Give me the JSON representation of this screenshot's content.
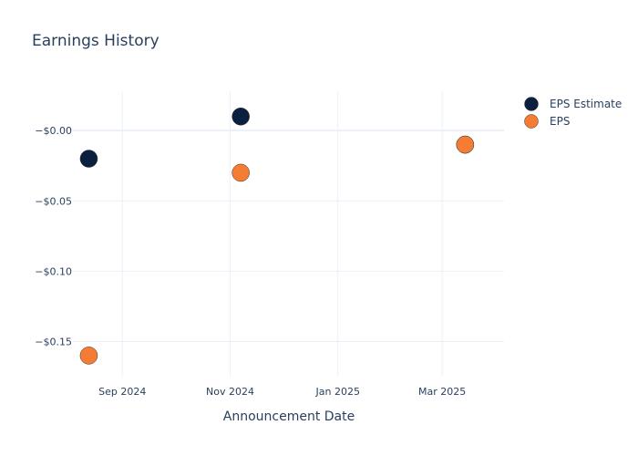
{
  "chart_data": {
    "type": "scatter",
    "title": "Earnings History",
    "xlabel": "Announcement Date",
    "ylabel": "",
    "x_ticks": [
      {
        "date": "2024-09-01",
        "label": "Sep 2024"
      },
      {
        "date": "2024-11-01",
        "label": "Nov 2024"
      },
      {
        "date": "2025-01-01",
        "label": "Jan 2025"
      },
      {
        "date": "2025-03-01",
        "label": "Mar 2025"
      }
    ],
    "y_ticks": [
      {
        "value": 0,
        "label": "−$0.00"
      },
      {
        "value": -0.05,
        "label": "−$0.05"
      },
      {
        "value": -0.1,
        "label": "−$0.10"
      },
      {
        "value": -0.15,
        "label": "−$0.15"
      }
    ],
    "xlim": [
      "2024-08-04",
      "2025-04-05"
    ],
    "ylim": [
      -0.175,
      0.028
    ],
    "grid": true,
    "legend_position": "top-right",
    "series": [
      {
        "name": "EPS Estimate",
        "color": "#0b1f3f",
        "points": [
          {
            "x": "2024-08-13",
            "y": -0.02
          },
          {
            "x": "2024-11-07",
            "y": 0.01
          },
          {
            "x": "2025-03-14",
            "y": -0.01
          }
        ]
      },
      {
        "name": "EPS",
        "color": "#f47c35",
        "points": [
          {
            "x": "2024-08-13",
            "y": -0.16
          },
          {
            "x": "2024-11-07",
            "y": -0.03
          },
          {
            "x": "2025-03-14",
            "y": -0.01
          }
        ]
      }
    ]
  }
}
